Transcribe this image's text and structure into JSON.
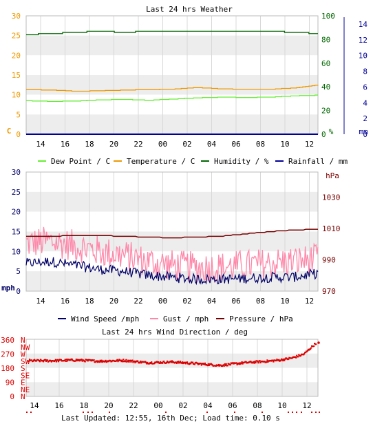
{
  "colors": {
    "dew_point": "#66ee33",
    "temperature": "#ee9900",
    "humidity": "#006600",
    "rainfall": "#000099",
    "wind_speed": "#000066",
    "gust": "#ff88aa",
    "pressure": "#770000",
    "wind_direction": "#dd0000",
    "axis_left_weather": "#ee9900",
    "axis_humidity": "#006600",
    "axis_rain": "#000099",
    "axis_wind": "#000066",
    "axis_pressure": "#770000",
    "axis_direction": "#dd0000",
    "band": "#ededed",
    "grid": "#d8d8d8"
  },
  "footer": {
    "text": "Last Updated: 12:55, 16th Dec; Load time: 0.10 s"
  },
  "chart_data": [
    {
      "id": "weather",
      "type": "line",
      "title": "Last 24 hrs Weather",
      "x_tick_labels": [
        "14",
        "16",
        "18",
        "20",
        "22",
        "00",
        "02",
        "04",
        "06",
        "08",
        "10",
        "12"
      ],
      "x_range_hours": [
        0,
        24
      ],
      "axes": {
        "left": {
          "unit_label": "C",
          "ylim": [
            0,
            30
          ],
          "ticks": [
            "0",
            "5",
            "10",
            "15",
            "20",
            "25",
            "30"
          ]
        },
        "right_humidity": {
          "unit_label": "%",
          "ylim": [
            0,
            100
          ],
          "ticks": [
            "0",
            "20",
            "40",
            "60",
            "80",
            "100"
          ]
        },
        "right_rain": {
          "unit_label": "mm",
          "ylim": [
            0,
            15
          ],
          "ticks": [
            "0",
            "2",
            "4",
            "6",
            "8",
            "10",
            "12",
            "14"
          ]
        }
      },
      "legend_position": "bottom",
      "series": [
        {
          "name": "Dew Point / C",
          "axis": "left",
          "x": [
            0,
            2,
            4,
            6,
            8,
            10,
            12,
            14,
            16,
            18,
            20,
            22,
            24
          ],
          "values": [
            8.5,
            8.3,
            8.4,
            8.7,
            8.8,
            8.6,
            8.9,
            9.2,
            9.4,
            9.3,
            9.4,
            9.7,
            9.9
          ]
        },
        {
          "name": "Temperature / C",
          "axis": "left",
          "x": [
            0,
            2,
            4,
            6,
            8,
            10,
            12,
            14,
            16,
            18,
            20,
            22,
            24
          ],
          "values": [
            11.3,
            11.2,
            10.9,
            11.0,
            11.2,
            11.3,
            11.4,
            11.8,
            11.5,
            11.4,
            11.4,
            11.7,
            12.5
          ]
        },
        {
          "name": "Humidity / %",
          "axis": "right_humidity",
          "x": [
            0,
            2,
            4,
            6,
            8,
            10,
            12,
            14,
            16,
            18,
            20,
            22,
            24
          ],
          "values": [
            84,
            85,
            86,
            87,
            86,
            87,
            87,
            87,
            87,
            87,
            87,
            86,
            85
          ]
        },
        {
          "name": "Rainfall / mm",
          "axis": "right_rain",
          "x": [
            0,
            24
          ],
          "values": [
            0,
            0
          ]
        }
      ]
    },
    {
      "id": "wind",
      "type": "line",
      "title": "",
      "x_tick_labels": [
        "14",
        "16",
        "18",
        "20",
        "22",
        "00",
        "02",
        "04",
        "06",
        "08",
        "10",
        "12"
      ],
      "x_range_hours": [
        0,
        24
      ],
      "axes": {
        "left": {
          "unit_label": "mph",
          "ylim": [
            0,
            30
          ],
          "ticks": [
            "0",
            "5",
            "10",
            "15",
            "20",
            "25",
            "30"
          ]
        },
        "right": {
          "unit_label": "hPa",
          "ylim": [
            970,
            1040
          ],
          "ticks": [
            "970",
            "990",
            "1010",
            "1030"
          ]
        }
      },
      "legend_position": "bottom",
      "series": [
        {
          "name": "Wind Speed /mph",
          "axis": "left",
          "x": [
            0,
            2,
            4,
            6,
            8,
            10,
            12,
            14,
            16,
            18,
            20,
            22,
            24
          ],
          "values": [
            7.0,
            7.5,
            6.5,
            5.5,
            5.0,
            4.0,
            3.5,
            3.0,
            3.0,
            3.2,
            3.5,
            3.5,
            4.5
          ]
        },
        {
          "name": "Gust / mph",
          "axis": "left",
          "x": [
            0,
            2,
            4,
            6,
            8,
            10,
            12,
            14,
            16,
            18,
            20,
            22,
            24
          ],
          "values": [
            12.0,
            12.5,
            11.5,
            10.0,
            9.0,
            7.5,
            6.5,
            6.0,
            6.0,
            6.5,
            7.0,
            7.5,
            8.0
          ]
        },
        {
          "name": "Pressure / hPa",
          "axis": "right",
          "x": [
            0,
            2,
            4,
            6,
            8,
            10,
            12,
            14,
            16,
            18,
            20,
            22,
            24
          ],
          "values": [
            1005,
            1005,
            1005.5,
            1005.5,
            1005,
            1004.5,
            1004,
            1004.5,
            1005,
            1006.5,
            1008,
            1009,
            1009.5
          ]
        }
      ]
    },
    {
      "id": "direction",
      "type": "scatter",
      "title": "Last 24 hrs Wind Direction / deg",
      "x_tick_labels": [
        "14",
        "16",
        "18",
        "20",
        "22",
        "00",
        "02",
        "04",
        "06",
        "08",
        "10",
        "12"
      ],
      "x_range_hours": [
        0,
        24
      ],
      "axes": {
        "left": {
          "ylim": [
            0,
            360
          ],
          "ticks": [
            "0",
            "90",
            "180",
            "270",
            "360"
          ]
        },
        "compass": {
          "labels": [
            "N",
            "NE",
            "E",
            "SE",
            "S",
            "SW",
            "W",
            "NW",
            "N"
          ]
        }
      },
      "series": [
        {
          "name": "Wind Direction",
          "x": [
            0,
            2,
            4,
            6,
            8,
            10,
            12,
            14,
            16,
            18,
            20,
            21,
            22,
            23,
            24
          ],
          "values": [
            228,
            228,
            232,
            225,
            230,
            215,
            220,
            210,
            198,
            215,
            225,
            232,
            245,
            270,
            340
          ]
        }
      ]
    }
  ]
}
